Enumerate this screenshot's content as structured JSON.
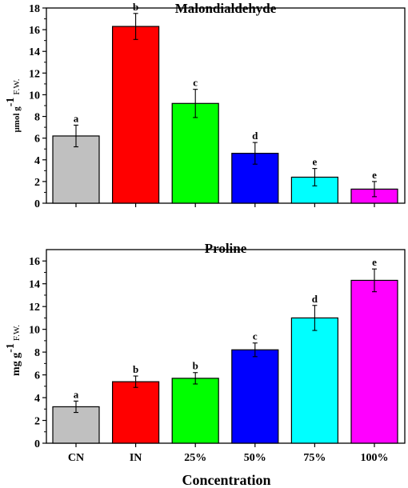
{
  "figure": {
    "xlabel": "Concentration"
  },
  "chart_data": [
    {
      "type": "bar",
      "title": "Malondialdehyde",
      "ylabel": "µmol g-1 F.W.",
      "ylabel_parts": {
        "unit": "µmol g",
        "exp": "-1",
        "suffix": "F.W."
      },
      "xlabel": "",
      "categories": [
        "CN",
        "IN",
        "25%",
        "50%",
        "75%",
        "100%"
      ],
      "values": [
        6.2,
        16.3,
        9.2,
        4.6,
        2.4,
        1.3
      ],
      "errors": [
        1.0,
        1.2,
        1.3,
        1.0,
        0.8,
        0.7
      ],
      "letters": [
        "a",
        "b",
        "c",
        "d",
        "e",
        "e"
      ],
      "colors": [
        "#c0c0c0",
        "#ff0000",
        "#00ff00",
        "#0000ff",
        "#00ffff",
        "#ff00ff"
      ],
      "ylim": [
        0,
        18
      ],
      "yticks": [
        0,
        2,
        4,
        6,
        8,
        10,
        12,
        14,
        16,
        18
      ],
      "grid": false,
      "show_category_labels": false
    },
    {
      "type": "bar",
      "title": "Proline",
      "ylabel": "mg g-1 F.W.",
      "ylabel_parts": {
        "unit": "mg g",
        "exp": "-1",
        "suffix": "F.W."
      },
      "xlabel": "Concentration",
      "categories": [
        "CN",
        "IN",
        "25%",
        "50%",
        "75%",
        "100%"
      ],
      "values": [
        3.2,
        5.4,
        5.7,
        8.2,
        11.0,
        14.3
      ],
      "errors": [
        0.5,
        0.5,
        0.5,
        0.6,
        1.1,
        1.0
      ],
      "letters": [
        "a",
        "b",
        "b",
        "c",
        "d",
        "e"
      ],
      "colors": [
        "#c0c0c0",
        "#ff0000",
        "#00ff00",
        "#0000ff",
        "#00ffff",
        "#ff00ff"
      ],
      "ylim": [
        0,
        17
      ],
      "yticks": [
        0,
        2,
        4,
        6,
        8,
        10,
        12,
        14,
        16
      ],
      "grid": false,
      "show_category_labels": true
    }
  ]
}
